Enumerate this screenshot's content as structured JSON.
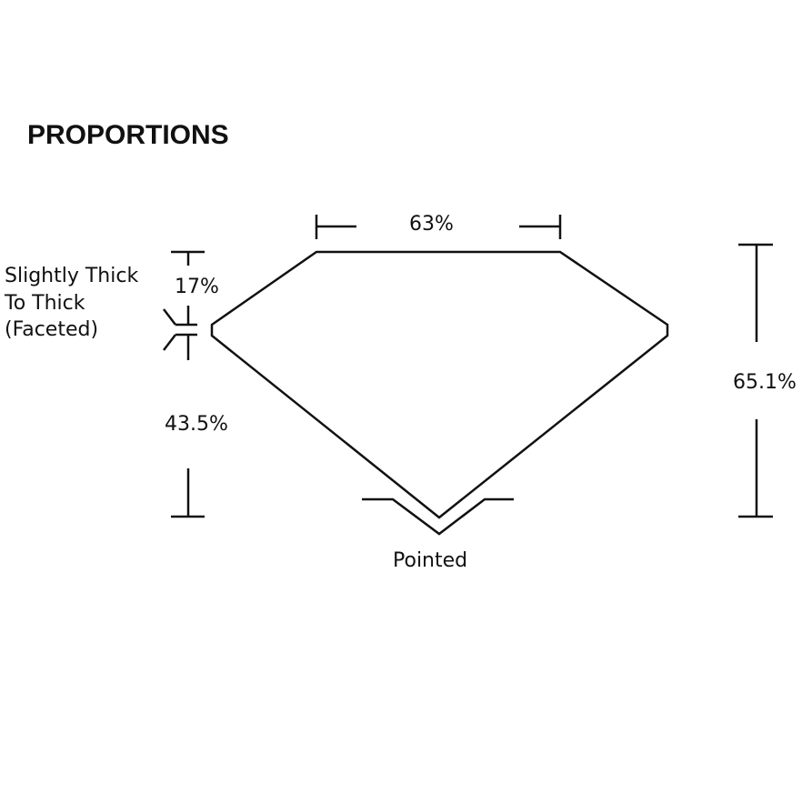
{
  "title": "PROPORTIONS",
  "labels": {
    "table": "63%",
    "crown": "17%",
    "pavilion": "43.5%",
    "total_depth": "65.1%",
    "girdle_lines": [
      "Slightly Thick",
      "To Thick",
      "(Faceted)"
    ],
    "culet": "Pointed"
  }
}
